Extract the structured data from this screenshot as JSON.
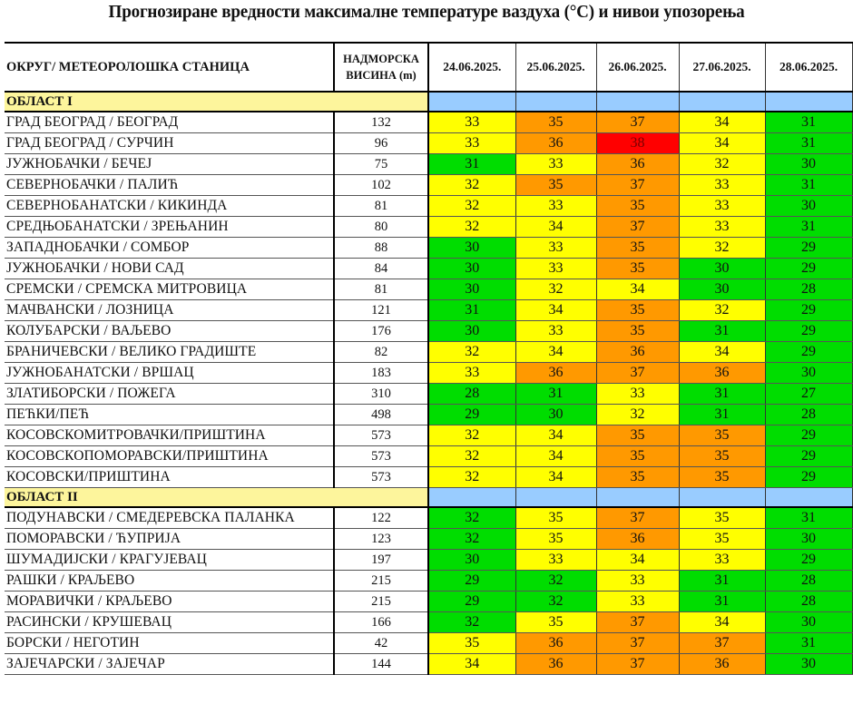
{
  "title": "Прогнозиране вредности максималне температуре ваздуха (°C) и нивои упозорења",
  "header": {
    "station": "ОКРУГ/ МЕТЕОРОЛОШКА СТАНИЦА",
    "altitude_line1": "НАДМОРСКА",
    "altitude_line2": "ВИСИНА  (m)",
    "dates": [
      "24.06.2025.",
      "25.06.2025.",
      "26.06.2025.",
      "27.06.2025.",
      "28.06.2025."
    ]
  },
  "warning_colors": {
    "green": "#00dd00",
    "yellow": "#ffff00",
    "orange": "#ff9900",
    "red": "#ff0000",
    "region_band": "#fdf59c",
    "region_cells": "#99ccff"
  },
  "regions": [
    {
      "name": "ОБЛАСТ I",
      "rows": [
        {
          "station": "ГРАД БЕОГРАД / БЕОГРАД",
          "alt": "132",
          "t": [
            "33",
            "35",
            "37",
            "34",
            "31"
          ],
          "c": [
            "y",
            "o",
            "o",
            "y",
            "g"
          ]
        },
        {
          "station": "ГРАД БЕОГРАД / СУРЧИН",
          "alt": "96",
          "t": [
            "33",
            "36",
            "38",
            "34",
            "31"
          ],
          "c": [
            "y",
            "o",
            "r",
            "y",
            "g"
          ]
        },
        {
          "station": "ЈУЖНОБАЧКИ / БЕЧЕЈ",
          "alt": "75",
          "t": [
            "31",
            "33",
            "36",
            "32",
            "30"
          ],
          "c": [
            "g",
            "y",
            "o",
            "y",
            "g"
          ]
        },
        {
          "station": "СЕВЕРНОБАЧКИ / ПАЛИЋ",
          "alt": "102",
          "t": [
            "32",
            "35",
            "37",
            "33",
            "31"
          ],
          "c": [
            "y",
            "o",
            "o",
            "y",
            "g"
          ]
        },
        {
          "station": "СЕВЕРНОБАНАТСКИ / КИКИНДА",
          "alt": "81",
          "t": [
            "32",
            "33",
            "35",
            "33",
            "30"
          ],
          "c": [
            "y",
            "y",
            "o",
            "y",
            "g"
          ]
        },
        {
          "station": "СРЕДЊОБАНАТСКИ / ЗРЕЊАНИН",
          "alt": "80",
          "t": [
            "32",
            "34",
            "37",
            "33",
            "31"
          ],
          "c": [
            "y",
            "y",
            "o",
            "y",
            "g"
          ]
        },
        {
          "station": "ЗАПАДНОБАЧКИ / СОМБОР",
          "alt": "88",
          "t": [
            "30",
            "33",
            "35",
            "32",
            "29"
          ],
          "c": [
            "g",
            "y",
            "o",
            "y",
            "g"
          ]
        },
        {
          "station": "ЈУЖНОБАЧКИ / НОВИ САД",
          "alt": "84",
          "t": [
            "30",
            "33",
            "35",
            "30",
            "29"
          ],
          "c": [
            "g",
            "y",
            "o",
            "g",
            "g"
          ]
        },
        {
          "station": "СРЕМСКИ / СРЕМСКА МИТРОВИЦА",
          "alt": "81",
          "t": [
            "30",
            "32",
            "34",
            "30",
            "28"
          ],
          "c": [
            "g",
            "y",
            "y",
            "g",
            "g"
          ]
        },
        {
          "station": "МАЧВАНСКИ / ЛОЗНИЦА",
          "alt": "121",
          "t": [
            "31",
            "34",
            "35",
            "32",
            "29"
          ],
          "c": [
            "g",
            "y",
            "o",
            "y",
            "g"
          ]
        },
        {
          "station": "КОЛУБАРСКИ / ВАЉЕВО",
          "alt": "176",
          "t": [
            "30",
            "33",
            "35",
            "31",
            "29"
          ],
          "c": [
            "g",
            "y",
            "o",
            "g",
            "g"
          ]
        },
        {
          "station": "БРАНИЧЕВСКИ / ВЕЛИКО ГРАДИШТЕ",
          "alt": "82",
          "t": [
            "32",
            "34",
            "36",
            "34",
            "29"
          ],
          "c": [
            "y",
            "y",
            "o",
            "y",
            "g"
          ]
        },
        {
          "station": "ЈУЖНОБАНАТСКИ / ВРШАЦ",
          "alt": "183",
          "t": [
            "33",
            "36",
            "37",
            "36",
            "30"
          ],
          "c": [
            "y",
            "o",
            "o",
            "o",
            "g"
          ]
        },
        {
          "station": "ЗЛАТИБОРСКИ / ПОЖЕГА",
          "alt": "310",
          "t": [
            "28",
            "31",
            "33",
            "31",
            "27"
          ],
          "c": [
            "g",
            "g",
            "y",
            "g",
            "g"
          ]
        },
        {
          "station": "ПЕЋКИ/ПЕЋ",
          "alt": "498",
          "t": [
            "29",
            "30",
            "32",
            "31",
            "28"
          ],
          "c": [
            "g",
            "g",
            "y",
            "g",
            "g"
          ]
        },
        {
          "station": "КОСОВСКОМИТРОВАЧКИ/ПРИШТИНА",
          "alt": "573",
          "t": [
            "32",
            "34",
            "35",
            "35",
            "29"
          ],
          "c": [
            "y",
            "y",
            "o",
            "o",
            "g"
          ]
        },
        {
          "station": "КОСОВСКОПОМОРАВСКИ/ПРИШТИНА",
          "alt": "573",
          "t": [
            "32",
            "34",
            "35",
            "35",
            "29"
          ],
          "c": [
            "y",
            "y",
            "o",
            "o",
            "g"
          ]
        },
        {
          "station": "КОСОВСКИ/ПРИШТИНА",
          "alt": "573",
          "t": [
            "32",
            "34",
            "35",
            "35",
            "29"
          ],
          "c": [
            "y",
            "y",
            "o",
            "o",
            "g"
          ]
        }
      ]
    },
    {
      "name": "ОБЛАСТ II",
      "rows": [
        {
          "station": "ПОДУНАВСКИ / СМЕДЕРЕВСКА ПАЛАНКА",
          "alt": "122",
          "t": [
            "32",
            "35",
            "37",
            "35",
            "31"
          ],
          "c": [
            "g",
            "y",
            "o",
            "y",
            "g"
          ]
        },
        {
          "station": "ПОМОРАВСКИ / ЋУПРИЈА",
          "alt": "123",
          "t": [
            "32",
            "35",
            "36",
            "35",
            "30"
          ],
          "c": [
            "g",
            "y",
            "o",
            "y",
            "g"
          ]
        },
        {
          "station": "ШУМАДИЈСКИ / КРАГУЈЕВАЦ",
          "alt": "197",
          "t": [
            "30",
            "33",
            "34",
            "33",
            "29"
          ],
          "c": [
            "g",
            "y",
            "y",
            "y",
            "g"
          ]
        },
        {
          "station": "РАШКИ / КРАЉЕВО",
          "alt": "215",
          "t": [
            "29",
            "32",
            "33",
            "31",
            "28"
          ],
          "c": [
            "g",
            "g",
            "y",
            "g",
            "g"
          ]
        },
        {
          "station": "МОРАВИЧКИ / КРАЉЕВО",
          "alt": "215",
          "t": [
            "29",
            "32",
            "33",
            "31",
            "28"
          ],
          "c": [
            "g",
            "g",
            "y",
            "g",
            "g"
          ]
        },
        {
          "station": "РАСИНСКИ / КРУШЕВАЦ",
          "alt": "166",
          "t": [
            "32",
            "35",
            "37",
            "34",
            "30"
          ],
          "c": [
            "g",
            "y",
            "o",
            "y",
            "g"
          ]
        },
        {
          "station": "БОРСКИ / НЕГОТИН",
          "alt": "42",
          "t": [
            "35",
            "36",
            "37",
            "37",
            "31"
          ],
          "c": [
            "y",
            "o",
            "o",
            "o",
            "g"
          ]
        },
        {
          "station": "ЗАЈЕЧАРСКИ / ЗАЈЕЧАР",
          "alt": "144",
          "t": [
            "34",
            "36",
            "37",
            "36",
            "30"
          ],
          "c": [
            "y",
            "o",
            "o",
            "o",
            "g"
          ]
        }
      ]
    }
  ]
}
